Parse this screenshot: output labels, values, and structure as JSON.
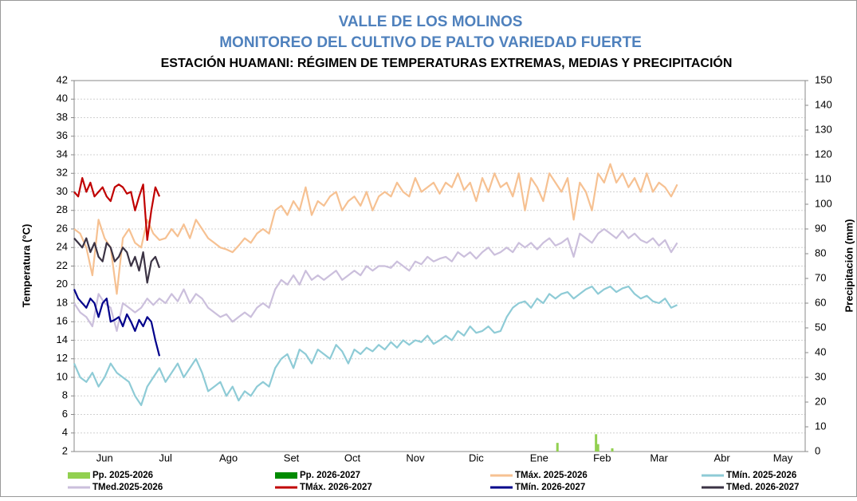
{
  "chart_data": {
    "type": "line",
    "title": "VALLE DE LOS MOLINOS",
    "subtitle": "MONITOREO DEL CULTIVO DE PALTO VARIEDAD FUERTE",
    "subtitle2": "ESTACIÓN HUAMANI: RÉGIMEN DE TEMPERATURAS EXTREMAS, MEDIAS Y PRECIPITACIÓN",
    "y_label": "Temperatura (°C)",
    "y2_label": "Precipitación (mm)",
    "xlim": [
      0,
      360
    ],
    "xticks": [
      {
        "value": 15,
        "label": "Jun"
      },
      {
        "value": 45,
        "label": "Jul"
      },
      {
        "value": 76,
        "label": "Ago"
      },
      {
        "value": 107,
        "label": "Set"
      },
      {
        "value": 137,
        "label": "Oct"
      },
      {
        "value": 168,
        "label": "Nov"
      },
      {
        "value": 198,
        "label": "Dic"
      },
      {
        "value": 229,
        "label": "Ene"
      },
      {
        "value": 260,
        "label": "Feb"
      },
      {
        "value": 288,
        "label": "Mar"
      },
      {
        "value": 319,
        "label": "Abr"
      },
      {
        "value": 349,
        "label": "May"
      }
    ],
    "ylim": [
      2,
      42
    ],
    "yticks": [
      2,
      4,
      6,
      8,
      10,
      12,
      14,
      16,
      18,
      20,
      22,
      24,
      26,
      28,
      30,
      32,
      34,
      36,
      38,
      40,
      42
    ],
    "y2lim": [
      0,
      150
    ],
    "y2ticks": [
      0,
      10,
      20,
      30,
      40,
      50,
      60,
      70,
      80,
      90,
      100,
      110,
      120,
      130,
      140,
      150
    ],
    "grid": true,
    "series": [
      {
        "name": "Pp. 2025-2026",
        "type": "bar",
        "axis": "y2",
        "color": "#92d050",
        "x": [
          238,
          257,
          258,
          265
        ],
        "values": [
          3.5,
          7,
          3,
          1.3
        ]
      },
      {
        "name": "Pp. 2026-2027",
        "type": "bar",
        "axis": "y2",
        "color": "#008a00",
        "x": [],
        "values": []
      },
      {
        "name": "TMáx. 2025-2026",
        "type": "line",
        "color": "#f6c192",
        "x": [
          0,
          3,
          6,
          9,
          12,
          15,
          18,
          21,
          24,
          27,
          30,
          33,
          36,
          39,
          42,
          45,
          48,
          51,
          54,
          57,
          60,
          63,
          66,
          69,
          72,
          75,
          78,
          81,
          84,
          87,
          90,
          93,
          96,
          99,
          102,
          105,
          108,
          111,
          114,
          117,
          120,
          123,
          126,
          129,
          132,
          135,
          138,
          141,
          144,
          147,
          150,
          153,
          156,
          159,
          162,
          165,
          168,
          171,
          174,
          177,
          180,
          183,
          186,
          189,
          192,
          195,
          198,
          201,
          204,
          207,
          210,
          213,
          216,
          219,
          222,
          225,
          228,
          231,
          234,
          237,
          240,
          243,
          246,
          249,
          252,
          255,
          258,
          261,
          264,
          267,
          270,
          273,
          276,
          279,
          282,
          285,
          288,
          291,
          294,
          297
        ],
        "values": [
          26,
          25.5,
          24,
          21,
          27,
          25,
          24,
          19,
          25,
          26,
          24.5,
          24,
          27,
          25.5,
          24.8,
          25,
          26,
          25.2,
          26.5,
          25,
          27,
          26,
          25,
          24.5,
          24,
          23.8,
          23.5,
          24.2,
          25,
          24.5,
          25.5,
          26,
          25.5,
          28,
          28.5,
          27.5,
          29,
          28,
          30.5,
          27.5,
          29,
          28.5,
          29.5,
          30,
          28,
          29,
          29.5,
          28.5,
          30,
          28,
          29.5,
          30,
          29.5,
          31,
          30,
          29.5,
          31.5,
          30,
          30.5,
          31,
          29.8,
          31,
          30.5,
          32,
          30.2,
          31,
          29,
          31.5,
          30,
          32,
          30.5,
          31,
          29.5,
          32,
          28,
          31.5,
          30.5,
          29,
          32,
          31,
          30,
          31.5,
          27,
          31,
          30,
          28,
          32,
          31,
          33,
          31,
          32,
          30.5,
          31.5,
          30,
          32,
          30,
          31,
          30.5,
          29.5,
          30.8
        ]
      },
      {
        "name": "TMín. 2025-2026",
        "type": "line",
        "color": "#8ecbd6",
        "x": [
          0,
          3,
          6,
          9,
          12,
          15,
          18,
          21,
          24,
          27,
          30,
          33,
          36,
          39,
          42,
          45,
          48,
          51,
          54,
          57,
          60,
          63,
          66,
          69,
          72,
          75,
          78,
          81,
          84,
          87,
          90,
          93,
          96,
          99,
          102,
          105,
          108,
          111,
          114,
          117,
          120,
          123,
          126,
          129,
          132,
          135,
          138,
          141,
          144,
          147,
          150,
          153,
          156,
          159,
          162,
          165,
          168,
          171,
          174,
          177,
          180,
          183,
          186,
          189,
          192,
          195,
          198,
          201,
          204,
          207,
          210,
          213,
          216,
          219,
          222,
          225,
          228,
          231,
          234,
          237,
          240,
          243,
          246,
          249,
          252,
          255,
          258,
          261,
          264,
          267,
          270,
          273,
          276,
          279,
          282,
          285,
          288,
          291,
          294,
          297
        ],
        "values": [
          11.5,
          10,
          9.5,
          10.5,
          9,
          10,
          11.5,
          10.5,
          10,
          9.5,
          8,
          7,
          9,
          10,
          11,
          9.5,
          10.5,
          11.5,
          10,
          11,
          12,
          10.5,
          8.5,
          9,
          9.5,
          8,
          9,
          7.5,
          8.5,
          8,
          9,
          9.5,
          9,
          11,
          12,
          12.5,
          11,
          13,
          12.5,
          11.5,
          13,
          12.5,
          12,
          13.5,
          12.8,
          11.5,
          13,
          12.5,
          13.2,
          12.8,
          13.5,
          13,
          13.8,
          13.2,
          14,
          13.5,
          14,
          13.8,
          14.5,
          13.6,
          14,
          14.5,
          14,
          15,
          14.5,
          15.5,
          14.8,
          15,
          15.5,
          14.8,
          15,
          16.5,
          17.5,
          18,
          18.2,
          17.5,
          18.5,
          18,
          19,
          18.5,
          19,
          19.2,
          18.5,
          19,
          19.5,
          19.8,
          19,
          19.5,
          19.8,
          19.2,
          19.6,
          19.8,
          19,
          18.5,
          18.8,
          18.2,
          18,
          18.5,
          17.5,
          17.8
        ]
      },
      {
        "name": "TMed.2025-2026",
        "type": "line",
        "color": "#cbbfdc",
        "x": [
          0,
          3,
          6,
          9,
          12,
          15,
          18,
          21,
          24,
          27,
          30,
          33,
          36,
          39,
          42,
          45,
          48,
          51,
          54,
          57,
          60,
          63,
          66,
          69,
          72,
          75,
          78,
          81,
          84,
          87,
          90,
          93,
          96,
          99,
          102,
          105,
          108,
          111,
          114,
          117,
          120,
          123,
          126,
          129,
          132,
          135,
          138,
          141,
          144,
          147,
          150,
          153,
          156,
          159,
          162,
          165,
          168,
          171,
          174,
          177,
          180,
          183,
          186,
          189,
          192,
          195,
          198,
          201,
          204,
          207,
          210,
          213,
          216,
          219,
          222,
          225,
          228,
          231,
          234,
          237,
          240,
          243,
          246,
          249,
          252,
          255,
          258,
          261,
          264,
          267,
          270,
          273,
          276,
          279,
          282,
          285,
          288,
          291,
          294,
          297
        ],
        "values": [
          18,
          17,
          16.5,
          15.5,
          19,
          18,
          17.5,
          15,
          18,
          17.5,
          17,
          17.5,
          18.5,
          17.8,
          18.5,
          18,
          19,
          18.2,
          19.5,
          18,
          19,
          18.5,
          17.5,
          17,
          16.5,
          16.8,
          16,
          16.5,
          17,
          16.5,
          17.5,
          18,
          17.5,
          19.5,
          20.5,
          20,
          21,
          20,
          21.5,
          20.5,
          21,
          20.5,
          21,
          21.5,
          20.5,
          21,
          21.5,
          21,
          22,
          21.5,
          22,
          22,
          21.8,
          22.5,
          22,
          21.5,
          22.5,
          22.2,
          23,
          22.5,
          22.8,
          23,
          22.5,
          23.5,
          23,
          23.5,
          22.8,
          23.5,
          24,
          23.2,
          23.5,
          24,
          23.5,
          24.5,
          24,
          24.5,
          23.8,
          24.5,
          25,
          24.2,
          24.5,
          25,
          23,
          25.5,
          25,
          24.5,
          25.5,
          26,
          25.5,
          25,
          25.8,
          25,
          25.5,
          24.8,
          24.5,
          25,
          24.2,
          24.8,
          23.5,
          24.5
        ]
      },
      {
        "name": "TMáx. 2026-2027",
        "type": "line",
        "color": "#c00000",
        "x": [
          0,
          2,
          4,
          6,
          8,
          10,
          12,
          14,
          16,
          18,
          20,
          22,
          24,
          26,
          28,
          30,
          32,
          34,
          36,
          38,
          40,
          42
        ],
        "values": [
          30,
          29.5,
          31.5,
          30,
          31,
          29.5,
          30,
          30.5,
          29.5,
          29,
          30.5,
          30.8,
          30.5,
          29.8,
          30,
          28,
          29.5,
          30.8,
          24.8,
          28,
          30.5,
          29.5
        ]
      },
      {
        "name": "TMín. 2026-2027",
        "type": "line",
        "color": "#00008b",
        "x": [
          0,
          2,
          4,
          6,
          8,
          10,
          12,
          14,
          16,
          18,
          20,
          22,
          24,
          26,
          28,
          30,
          32,
          34,
          36,
          38,
          40,
          42
        ],
        "values": [
          19.5,
          18.5,
          18,
          17.5,
          18.5,
          18,
          16.5,
          18,
          18.5,
          16,
          16.2,
          16.5,
          15.5,
          16.8,
          16,
          15,
          16.2,
          15.5,
          16.5,
          16,
          14,
          12.3
        ]
      },
      {
        "name": "TMed. 2026-2027",
        "type": "line",
        "color": "#3b3344",
        "x": [
          0,
          2,
          4,
          6,
          8,
          10,
          12,
          14,
          16,
          18,
          20,
          22,
          24,
          26,
          28,
          30,
          32,
          34,
          36,
          38,
          40,
          42
        ],
        "values": [
          25,
          24.5,
          24,
          25,
          23.5,
          24.5,
          23,
          22.5,
          24.5,
          24,
          22.5,
          23,
          24,
          23.5,
          22,
          23,
          21.5,
          23.5,
          20.2,
          22.5,
          23,
          21.8
        ]
      }
    ]
  }
}
